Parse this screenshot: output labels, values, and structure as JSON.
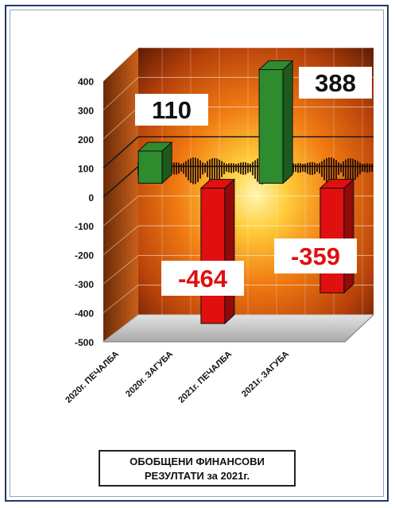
{
  "chart_data": {
    "type": "bar",
    "categories": [
      "2020г. ПЕЧАЛБА",
      "2020г. ЗАГУБА",
      "2021г. ПЕЧАЛБА",
      "2021г. ЗАГУБА"
    ],
    "values": [
      110,
      -464,
      388,
      -359
    ],
    "data_labels": [
      "110",
      "-464",
      "388",
      "-359"
    ],
    "bar_colors": [
      "#2e8b2e",
      "#e01010",
      "#2e8b2e",
      "#e01010"
    ],
    "ylim": [
      -500,
      400
    ],
    "yticks": [
      "400",
      "300",
      "200",
      "100",
      "0",
      "-100",
      "-200",
      "-300",
      "-400",
      "-500"
    ],
    "title": "",
    "xlabel": "",
    "ylabel": "",
    "grid": true,
    "style": "3d"
  },
  "caption": {
    "line1": "ОБОБЩЕНИ ФИНАНСОВИ",
    "line2": "РЕЗУЛТАТИ  за  2021г."
  }
}
